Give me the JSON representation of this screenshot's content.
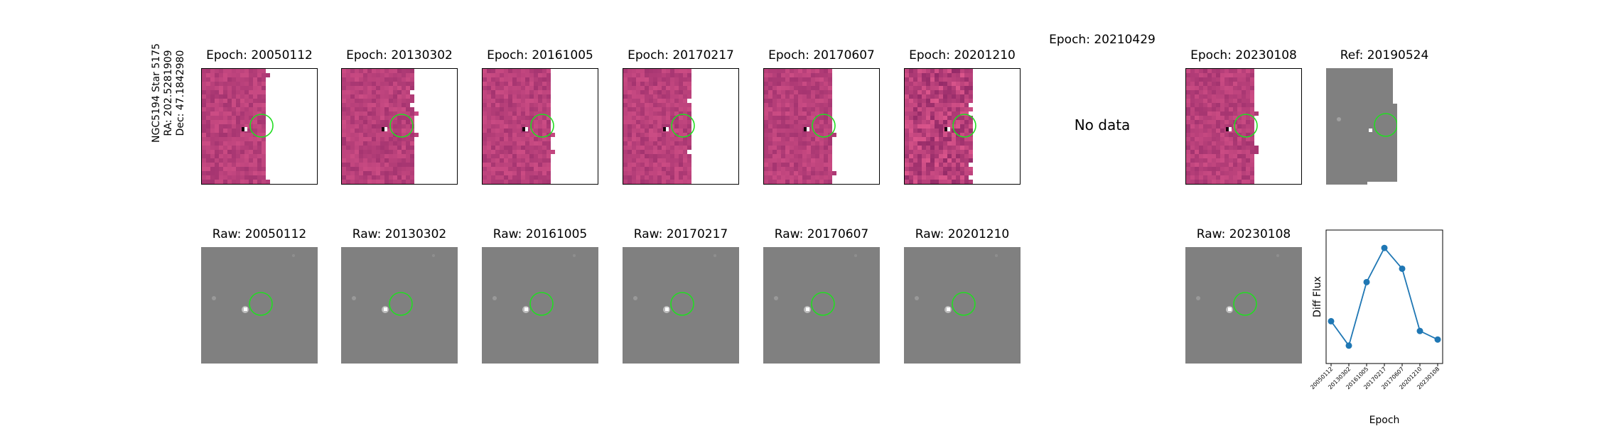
{
  "star": {
    "name": "NGC5194 Star 5175",
    "ra": "RA: 202.5281909",
    "dec": "Dec: 47.1842980"
  },
  "diff_panels": [
    {
      "title": "Epoch: 20050112",
      "has_data": true
    },
    {
      "title": "Epoch: 20130302",
      "has_data": true
    },
    {
      "title": "Epoch: 20161005",
      "has_data": true
    },
    {
      "title": "Epoch: 20170217",
      "has_data": true
    },
    {
      "title": "Epoch: 20170607",
      "has_data": true
    },
    {
      "title": "Epoch: 20201210",
      "has_data": true
    },
    {
      "title": "Epoch: 20210429",
      "has_data": false,
      "message": "No data"
    },
    {
      "title": "Epoch: 20230108",
      "has_data": true
    }
  ],
  "ref_panel": {
    "title": "Ref: 20190524"
  },
  "raw_panels": [
    {
      "title": "Raw: 20050112"
    },
    {
      "title": "Raw: 20130302"
    },
    {
      "title": "Raw: 20161005"
    },
    {
      "title": "Raw: 20170217"
    },
    {
      "title": "Raw: 20170607"
    },
    {
      "title": "Raw: 20201210"
    },
    {
      "title": "Raw: 20230108"
    }
  ],
  "colors": {
    "diff_map": "#b8407a",
    "raw_bg": "#808080",
    "circle": "#22dd22",
    "line": "#1f77b4"
  },
  "chart_data": {
    "type": "line",
    "title": "",
    "xlabel": "Epoch",
    "ylabel": "Diff Flux",
    "categories": [
      "20050112",
      "20130302",
      "20161005",
      "20170217",
      "20170607",
      "20201210",
      "20230108"
    ],
    "values": [
      0.3,
      0.1,
      0.62,
      0.9,
      0.73,
      0.22,
      0.15
    ],
    "ylim": [
      0.0,
      1.0
    ],
    "yticks_visible": false,
    "grid": false,
    "legend": "none"
  }
}
